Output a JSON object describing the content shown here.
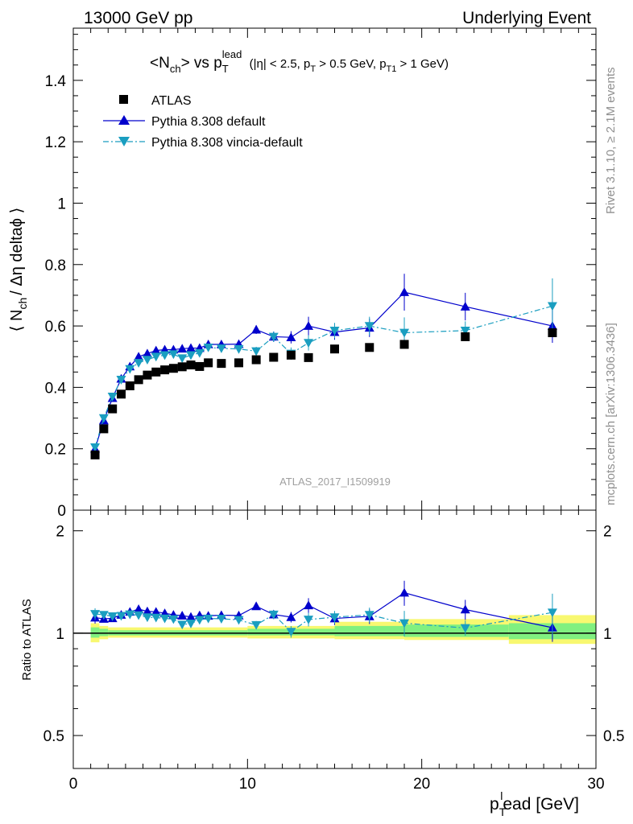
{
  "header": {
    "left": "13000 GeV pp",
    "right": "Underlying Event"
  },
  "title": {
    "main": "<N",
    "main_sub": "ch",
    "main_vs": "> vs p",
    "main_sub_t": "T",
    "main_sup": "lead",
    "cut_open": "(|η| < 2.5, p",
    "cut_sub_t": "T",
    "cut_mid": " > 0.5 GeV, p",
    "cut_sub_t1": "T1",
    "cut_close": " > 1 GeV)"
  },
  "side_labels": {
    "rivet": "Rivet 3.1.10, ≥ 2.1M events",
    "mcplots": "mcplots.cern.ch [arXiv:1306.3436]"
  },
  "watermark": "ATLAS_2017_I1509919",
  "axes": {
    "ylabel_main_pre": "⟨ N",
    "ylabel_main_sub": "ch",
    "ylabel_main_post": "/ Δη deltaϕ ⟩",
    "ylabel_ratio": "Ratio to ATLAS",
    "xlabel_pre": "p",
    "xlabel_sub": "T",
    "xlabel_sup": "l",
    "xlabel_post": "ead [GeV]",
    "x_ticks": [
      "0",
      "10",
      "20",
      "30"
    ],
    "y_ticks": [
      "0",
      "0.2",
      "0.4",
      "0.6",
      "0.8",
      "1",
      "1.2",
      "1.4"
    ],
    "ratio_ticks": [
      "0.5",
      "1",
      "2"
    ]
  },
  "legend": [
    {
      "label": "ATLAS",
      "marker": "square",
      "color": "#000000"
    },
    {
      "label": "Pythia 8.308 default",
      "marker": "triangle-up",
      "color": "#0000cc"
    },
    {
      "label": "Pythia 8.308 vincia-default",
      "marker": "triangle-down",
      "color": "#1a9ec0"
    }
  ],
  "chart_data": {
    "type": "scatter",
    "xlim": [
      0,
      30
    ],
    "ylim": [
      0,
      1.57
    ],
    "ratio_ylim": [
      0.4,
      2.3
    ],
    "ratio_scale": "log",
    "legend_position": "top-left",
    "grid": false,
    "series": [
      {
        "name": "ATLAS",
        "color": "#000000",
        "x": [
          1.25,
          1.75,
          2.25,
          2.75,
          3.25,
          3.75,
          4.25,
          4.75,
          5.25,
          5.75,
          6.25,
          6.75,
          7.25,
          7.75,
          8.5,
          9.5,
          10.5,
          11.5,
          12.5,
          13.5,
          15,
          17,
          19,
          22.5,
          27.5
        ],
        "y": [
          0.18,
          0.265,
          0.33,
          0.378,
          0.405,
          0.425,
          0.44,
          0.45,
          0.457,
          0.462,
          0.467,
          0.473,
          0.468,
          0.48,
          0.478,
          0.48,
          0.49,
          0.498,
          0.505,
          0.497,
          0.525,
          0.53,
          0.54,
          0.565,
          0.578
        ]
      },
      {
        "name": "Pythia 8.308 default",
        "color": "#0000cc",
        "x": [
          1.25,
          1.75,
          2.25,
          2.75,
          3.25,
          3.75,
          4.25,
          4.75,
          5.25,
          5.75,
          6.25,
          6.75,
          7.25,
          7.75,
          8.5,
          9.5,
          10.5,
          11.5,
          12.5,
          13.5,
          15,
          17,
          19,
          22.5,
          27.5
        ],
        "y": [
          0.2,
          0.292,
          0.365,
          0.428,
          0.468,
          0.5,
          0.51,
          0.52,
          0.523,
          0.523,
          0.526,
          0.528,
          0.528,
          0.54,
          0.54,
          0.541,
          0.588,
          0.565,
          0.563,
          0.6,
          0.58,
          0.594,
          0.71,
          0.663,
          0.6
        ],
        "err": [
          0.008,
          0.006,
          0.006,
          0.006,
          0.006,
          0.006,
          0.006,
          0.006,
          0.006,
          0.006,
          0.006,
          0.006,
          0.007,
          0.008,
          0.01,
          0.012,
          0.014,
          0.017,
          0.02,
          0.03,
          0.025,
          0.03,
          0.06,
          0.045,
          0.055
        ]
      },
      {
        "name": "Pythia 8.308 vincia-default",
        "color": "#1a9ec0",
        "x": [
          1.25,
          1.75,
          2.25,
          2.75,
          3.25,
          3.75,
          4.25,
          4.75,
          5.25,
          5.75,
          6.25,
          6.75,
          7.25,
          7.75,
          8.5,
          9.5,
          10.5,
          11.5,
          12.5,
          13.5,
          15,
          17,
          19,
          22.5,
          27.5
        ],
        "y": [
          0.205,
          0.3,
          0.37,
          0.425,
          0.46,
          0.48,
          0.49,
          0.5,
          0.505,
          0.508,
          0.495,
          0.505,
          0.512,
          0.53,
          0.527,
          0.525,
          0.518,
          0.565,
          0.51,
          0.545,
          0.585,
          0.6,
          0.578,
          0.585,
          0.665
        ],
        "err": [
          0.008,
          0.006,
          0.006,
          0.006,
          0.006,
          0.006,
          0.006,
          0.006,
          0.006,
          0.006,
          0.006,
          0.006,
          0.007,
          0.008,
          0.01,
          0.012,
          0.014,
          0.017,
          0.02,
          0.025,
          0.025,
          0.03,
          0.05,
          0.03,
          0.09
        ]
      }
    ],
    "ratio_band": {
      "x_edges": [
        1,
        1.5,
        2,
        10,
        15,
        19,
        25,
        30
      ],
      "inner": [
        [
          0.97,
          1.04
        ],
        [
          0.98,
          1.03
        ],
        [
          0.985,
          1.02
        ],
        [
          0.985,
          1.03
        ],
        [
          0.98,
          1.05
        ],
        [
          0.975,
          1.06
        ],
        [
          0.96,
          1.07
        ]
      ],
      "outer": [
        [
          0.94,
          1.07
        ],
        [
          0.96,
          1.05
        ],
        [
          0.97,
          1.04
        ],
        [
          0.965,
          1.05
        ],
        [
          0.96,
          1.08
        ],
        [
          0.955,
          1.1
        ],
        [
          0.93,
          1.13
        ]
      ],
      "inner_color": "#80f080",
      "outer_color": "#f8f870"
    }
  }
}
